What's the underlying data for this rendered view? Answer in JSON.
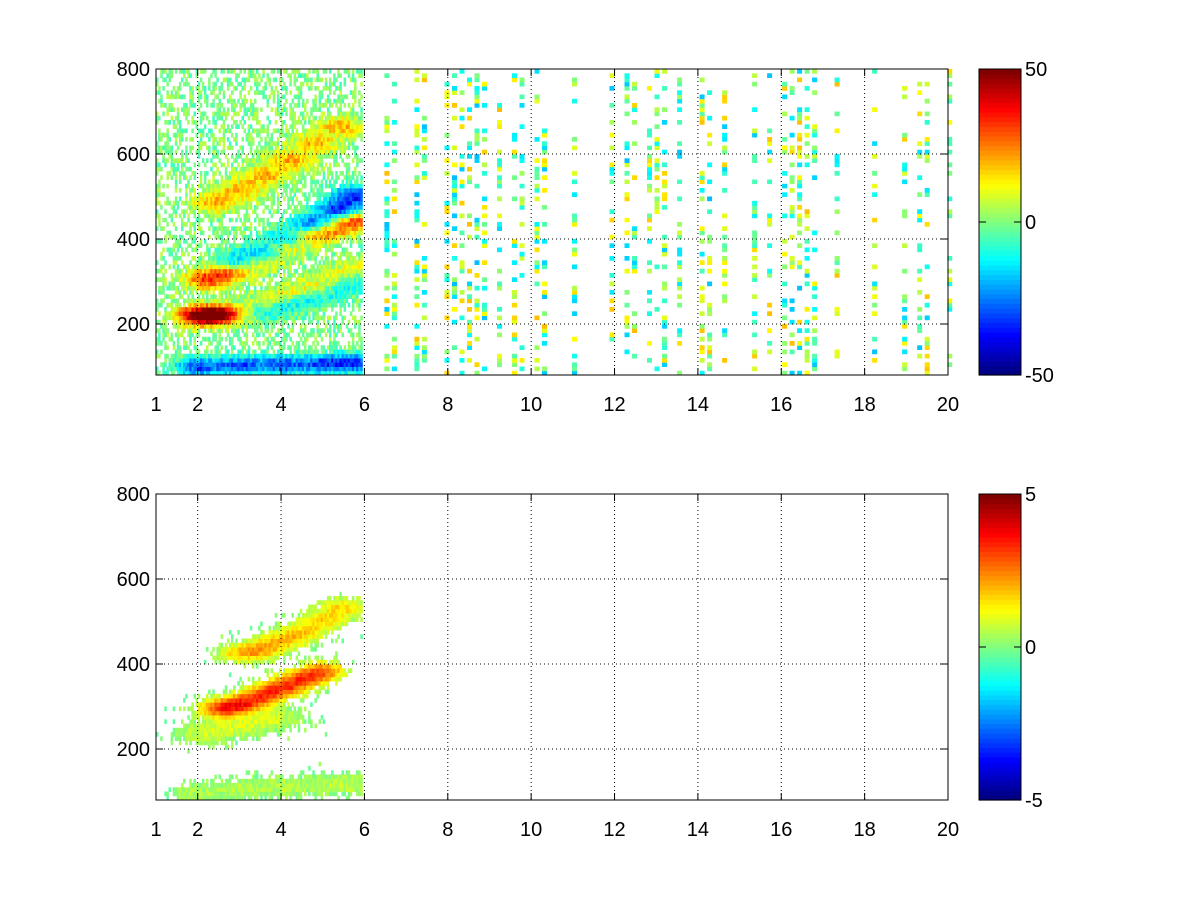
{
  "chart_data": [
    {
      "type": "heatmap",
      "title": "",
      "xlabel": "",
      "ylabel": "",
      "xlim": [
        1,
        20
      ],
      "ylim": [
        80,
        800
      ],
      "x_ticks": [
        1,
        2,
        4,
        6,
        8,
        10,
        12,
        14,
        16,
        18,
        20
      ],
      "y_ticks": [
        200,
        400,
        600,
        800
      ],
      "grid": true,
      "colormap": "jet",
      "colorbar": {
        "min": -50,
        "max": 50,
        "ticks": [
          -50,
          0,
          50
        ]
      },
      "tick_labels": {
        "x": [
          "1",
          "2",
          "4",
          "6",
          "8",
          "10",
          "12",
          "14",
          "16",
          "18",
          "20"
        ],
        "y": [
          "200",
          "400",
          "600",
          "800"
        ],
        "colorbar": [
          "-50",
          "0",
          "50"
        ]
      },
      "features": [
        {
          "x": [
            2.0,
            2.5,
            3.0,
            3.5,
            4.0,
            4.5,
            5.0,
            5.5,
            5.8
          ],
          "y": [
            215,
            218,
            225,
            235,
            250,
            265,
            280,
            300,
            320
          ],
          "value": 45
        },
        {
          "x": [
            3.0,
            3.5,
            4.0,
            4.5,
            5.0,
            5.5,
            5.8
          ],
          "y": [
            225,
            232,
            245,
            260,
            275,
            295,
            315
          ],
          "value": -45
        },
        {
          "x": [
            2.2,
            2.8,
            3.4,
            4.0,
            4.6,
            5.2,
            5.8
          ],
          "y": [
            300,
            320,
            345,
            375,
            400,
            420,
            440
          ],
          "value": 30
        },
        {
          "x": [
            3.0,
            3.6,
            4.2,
            4.8,
            5.4,
            5.8
          ],
          "y": [
            340,
            365,
            395,
            430,
            465,
            500
          ],
          "value": -35
        },
        {
          "x": [
            2.0,
            3.0,
            4.0,
            5.0,
            5.8
          ],
          "y": [
            95,
            98,
            100,
            102,
            104
          ],
          "value": -30
        },
        {
          "x": [
            2.4,
            3.0,
            3.6,
            4.2,
            4.8,
            5.4
          ],
          "y": [
            480,
            510,
            545,
            580,
            620,
            660
          ],
          "value": 20
        }
      ]
    },
    {
      "type": "heatmap",
      "title": "",
      "xlabel": "",
      "ylabel": "",
      "xlim": [
        1,
        20
      ],
      "ylim": [
        80,
        800
      ],
      "x_ticks": [
        1,
        2,
        4,
        6,
        8,
        10,
        12,
        14,
        16,
        18,
        20
      ],
      "y_ticks": [
        200,
        400,
        600,
        800
      ],
      "grid": true,
      "colormap": "jet",
      "colorbar": {
        "min": -5,
        "max": 5,
        "ticks": [
          -5,
          0,
          5
        ]
      },
      "tick_labels": {
        "x": [
          "1",
          "2",
          "4",
          "6",
          "8",
          "10",
          "12",
          "14",
          "16",
          "18",
          "20"
        ],
        "y": [
          "200",
          "400",
          "600",
          "800"
        ],
        "colorbar": [
          "-5",
          "0",
          "5"
        ]
      },
      "features": [
        {
          "x": [
            2.5,
            3.0,
            3.5,
            4.0,
            4.5,
            5.0
          ],
          "y": [
            290,
            300,
            320,
            340,
            360,
            380
          ],
          "value": 2.5
        },
        {
          "x": [
            3.0,
            3.5,
            4.0,
            4.5,
            5.0,
            5.5
          ],
          "y": [
            420,
            430,
            450,
            470,
            500,
            530
          ],
          "value": 1.5
        },
        {
          "x": [
            2.0,
            2.5,
            3.0,
            3.5,
            4.0
          ],
          "y": [
            230,
            240,
            250,
            260,
            270
          ],
          "value": 0.5
        },
        {
          "x": [
            2.0,
            3.0,
            4.0,
            5.0,
            5.8
          ],
          "y": [
            90,
            100,
            108,
            110,
            112
          ],
          "value": 0.5
        }
      ]
    }
  ]
}
